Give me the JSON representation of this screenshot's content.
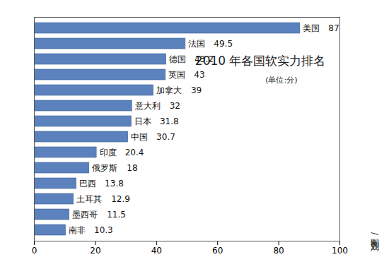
{
  "chart_data": {
    "type": "bar",
    "orientation": "horizontal",
    "title": "2010 年各国软实力排名",
    "subtitle": "(单位:分)",
    "annotation": "制图/刘江",
    "categories": [
      "美国",
      "法国",
      "德国",
      "英国",
      "加拿大",
      "意大利",
      "日本",
      "中国",
      "印度",
      "俄罗斯",
      "巴西",
      "土耳其",
      "墨西哥",
      "南非"
    ],
    "values": [
      87,
      49.5,
      43.2,
      43,
      39,
      32,
      31.8,
      30.7,
      20.4,
      18,
      13.8,
      12.9,
      11.5,
      10.3
    ],
    "color": "#5b82bd",
    "xlim": [
      0,
      100
    ],
    "xticks": [
      0,
      20,
      40,
      60,
      80,
      100
    ],
    "data_labels": true,
    "tick_labels": "x",
    "grid": false
  }
}
